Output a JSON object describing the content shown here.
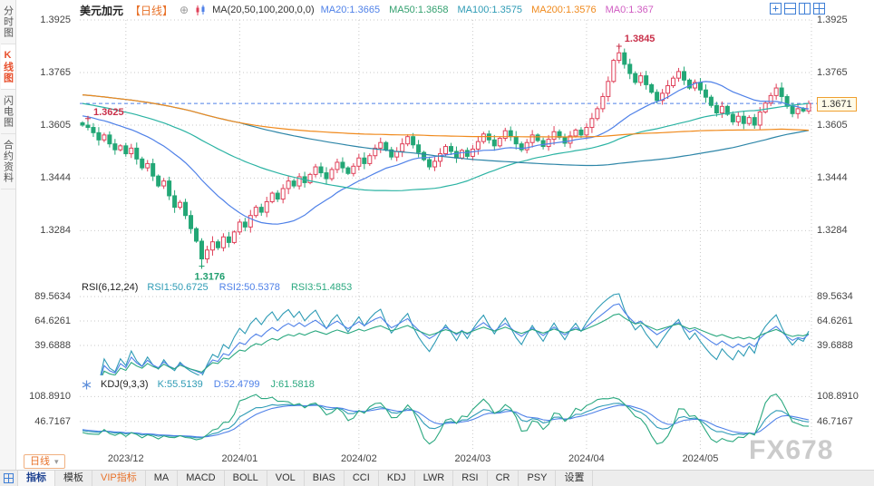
{
  "app": {
    "watermark": "FX678"
  },
  "sidebar": {
    "items": [
      {
        "label": "分时图",
        "name": "time-chart",
        "active": false
      },
      {
        "label": "K线图",
        "name": "kline-chart",
        "active": true
      },
      {
        "label": "闪电图",
        "name": "lightning-chart",
        "active": false
      },
      {
        "label": "合约资料",
        "name": "contract-info",
        "active": false
      }
    ]
  },
  "header": {
    "symbol": "美元加元",
    "period_tag": "【日线】",
    "add_glyph": "⊕",
    "ma_title": "MA(20,50,100,200,0,0)",
    "ma_values": [
      {
        "label": "MA20:1.3665",
        "color": "#4f81e8",
        "period": 20,
        "line": "#4f81e8",
        "draw": true
      },
      {
        "label": "MA50:1.3658",
        "color": "#33a06f",
        "period": 50,
        "line": "#2bb3a3",
        "draw": true
      },
      {
        "label": "MA100:1.3575",
        "color": "#2e9bb5",
        "period": 100,
        "line": "#2e86a8",
        "draw": true
      },
      {
        "label": "MA200:1.3576",
        "color": "#f08a1d",
        "period": 200,
        "line": "#f08a1d",
        "draw": true
      },
      {
        "label": "MA0:1.367",
        "color": "#d05cc2",
        "period": 0,
        "line": "#d05cc2",
        "draw": false
      }
    ],
    "icons": {
      "add": "circle-plus-icon",
      "candle": "candlestick-icon",
      "layout": [
        "add-pane-icon",
        "split-rows-icon",
        "split-cols-icon",
        "grid-2x2-icon"
      ]
    }
  },
  "price_axis": {
    "ticks": [
      1.3925,
      1.3765,
      1.3605,
      1.3444,
      1.3284
    ],
    "current_label": "1.3671"
  },
  "annotations": {
    "early_high": "1.3625",
    "peak_high": "1.3845",
    "low": "1.3176"
  },
  "rsi_panel": {
    "title": "RSI(6,12,24)",
    "ticks": [
      89.5634,
      64.6261,
      39.6888
    ],
    "series": [
      {
        "label": "RSI1:50.6725",
        "color": "#2e9bb5",
        "period": 6
      },
      {
        "label": "RSI2:50.5378",
        "color": "#4f81e8",
        "period": 12
      },
      {
        "label": "RSI3:51.4853",
        "color": "#2aa87f",
        "period": 24
      }
    ]
  },
  "kdj_panel": {
    "title": "KDJ(9,3,3)",
    "icon": "kdj-settings-icon",
    "ticks": [
      108.891,
      46.7167
    ],
    "series": [
      {
        "label": "K:55.5139",
        "color": "#2e9bb5"
      },
      {
        "label": "D:52.4799",
        "color": "#4f81e8"
      },
      {
        "label": "J:61.5818",
        "color": "#2aa87f"
      }
    ]
  },
  "x_axis": {
    "month_ticks": [
      {
        "label": "2023/12",
        "index": 8
      },
      {
        "label": "2024/01",
        "index": 29
      },
      {
        "label": "2024/02",
        "index": 51
      },
      {
        "label": "2024/03",
        "index": 72
      },
      {
        "label": "2024/04",
        "index": 93
      },
      {
        "label": "2024/05",
        "index": 114
      }
    ]
  },
  "period_button": {
    "label": "日线",
    "caret": "▾"
  },
  "toolbar": {
    "icon": "indicator-grid-icon",
    "tabs": [
      {
        "label": "指标",
        "name": "indicators",
        "active": true,
        "color": "#1a3f8f"
      },
      {
        "label": "模板",
        "name": "templates",
        "active": false,
        "color": "#333333"
      },
      {
        "label": "VIP指标",
        "name": "vip-indicators",
        "active": false,
        "color": "#e8722a"
      }
    ],
    "buttons": [
      {
        "label": "MA",
        "name": "ma"
      },
      {
        "label": "MACD",
        "name": "macd"
      },
      {
        "label": "BOLL",
        "name": "boll"
      },
      {
        "label": "VOL",
        "name": "vol"
      },
      {
        "label": "BIAS",
        "name": "bias"
      },
      {
        "label": "CCI",
        "name": "cci"
      },
      {
        "label": "KDJ",
        "name": "kdj"
      },
      {
        "label": "LWR",
        "name": "lwr"
      },
      {
        "label": "RSI",
        "name": "rsi"
      },
      {
        "label": "CR",
        "name": "cr"
      },
      {
        "label": "PSY",
        "name": "psy"
      },
      {
        "label": "设置",
        "name": "settings"
      }
    ]
  },
  "colors": {
    "up": "#df4059",
    "down": "#23a776",
    "grid": "#c9c9c9",
    "dashed_line": "#4f81e8",
    "annotation_up": "#c9304a",
    "annotation_down": "#1f9e6e"
  },
  "chart_data": {
    "type": "candlestick",
    "title": "美元加元 日线",
    "open_first": 1.359,
    "closes": [
      1.3605,
      1.3598,
      1.3582,
      1.356,
      1.3575,
      1.3548,
      1.353,
      1.3542,
      1.3518,
      1.3535,
      1.3502,
      1.3475,
      1.3488,
      1.345,
      1.342,
      1.3435,
      1.339,
      1.3355,
      1.337,
      1.333,
      1.329,
      1.3252,
      1.3198,
      1.3225,
      1.325,
      1.3232,
      1.3265,
      1.3248,
      1.328,
      1.331,
      1.3295,
      1.333,
      1.3355,
      1.334,
      1.3372,
      1.3398,
      1.338,
      1.3412,
      1.3435,
      1.342,
      1.3448,
      1.343,
      1.3455,
      1.3478,
      1.346,
      1.3442,
      1.347,
      1.3492,
      1.3475,
      1.3458,
      1.348,
      1.3505,
      1.3488,
      1.3512,
      1.3535,
      1.3552,
      1.353,
      1.3508,
      1.3525,
      1.3548,
      1.357,
      1.3545,
      1.3522,
      1.35,
      1.3478,
      1.3495,
      1.3518,
      1.354,
      1.3525,
      1.3505,
      1.3528,
      1.351,
      1.3532,
      1.3555,
      1.3578,
      1.356,
      1.3542,
      1.3565,
      1.3588,
      1.357,
      1.3548,
      1.353,
      1.3552,
      1.3575,
      1.3558,
      1.354,
      1.3562,
      1.3585,
      1.3568,
      1.355,
      1.3572,
      1.359,
      1.3575,
      1.3598,
      1.3625,
      1.3655,
      1.3692,
      1.3738,
      1.3802,
      1.3825,
      1.379,
      1.3762,
      1.3735,
      1.3755,
      1.3728,
      1.3705,
      1.368,
      1.3702,
      1.3725,
      1.3748,
      1.3768,
      1.3742,
      1.3718,
      1.3735,
      1.3712,
      1.369,
      1.3665,
      1.3642,
      1.3662,
      1.3638,
      1.3615,
      1.3632,
      1.361,
      1.3628,
      1.3605,
      1.3645,
      1.3672,
      1.3695,
      1.3718,
      1.3692,
      1.3662,
      1.364,
      1.3655,
      1.3648,
      1.3671
    ],
    "special": {
      "high_index": 99,
      "high": 1.3845,
      "low_index": 22,
      "low": 1.3176,
      "early_high_index": 1,
      "early_high": 1.3625
    },
    "warmup": {
      "count": 70,
      "start": 1.3785,
      "end": 1.3612
    },
    "ylim": [
      1.3136,
      1.3925
    ],
    "rsi_ylim": [
      11,
      98
    ],
    "kdj_ylim": [
      -28,
      130
    ]
  }
}
